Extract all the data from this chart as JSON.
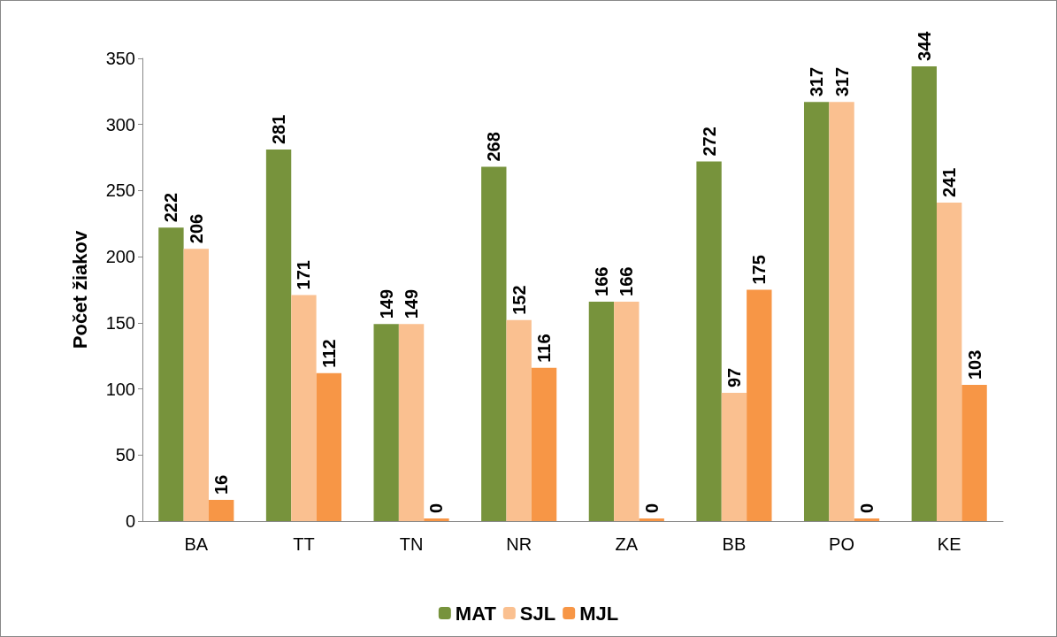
{
  "chart_data": {
    "type": "bar",
    "ylabel": "Počet žiakov",
    "categories": [
      "BA",
      "TT",
      "TN",
      "NR",
      "ZA",
      "BB",
      "PO",
      "KE"
    ],
    "series": [
      {
        "name": "MAT",
        "color": "#77933c",
        "values": [
          222,
          281,
          149,
          268,
          166,
          272,
          317,
          344
        ]
      },
      {
        "name": "SJL",
        "color": "#fac090",
        "values": [
          206,
          171,
          149,
          152,
          166,
          97,
          317,
          241
        ]
      },
      {
        "name": "MJL",
        "color": "#f79646",
        "values": [
          16,
          112,
          0,
          116,
          0,
          175,
          0,
          103
        ]
      }
    ],
    "ylim": [
      0,
      350
    ],
    "yticks": [
      0,
      50,
      100,
      150,
      200,
      250,
      300,
      350
    ],
    "grid": false,
    "legend": "bottom",
    "data_labels": true
  }
}
